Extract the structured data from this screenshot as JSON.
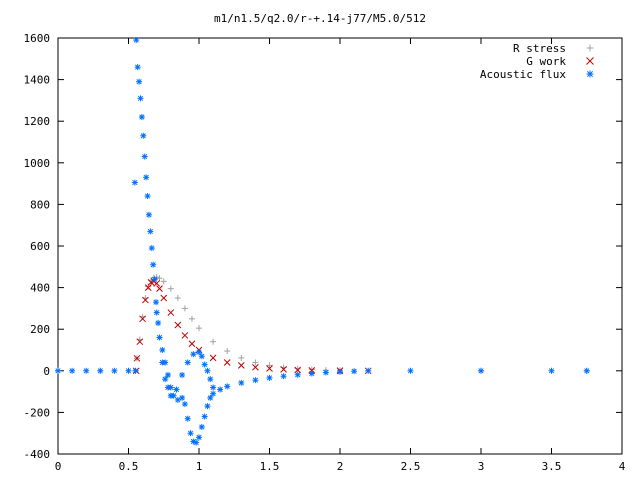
{
  "chart_data": {
    "type": "scatter",
    "title": "m1/n1.5/q2.0/r-+.14-j77/M5.0/512",
    "xlabel": "",
    "ylabel": "",
    "xlim": [
      0,
      4
    ],
    "ylim": [
      -400,
      1600
    ],
    "x_ticks": [
      {
        "value": 0,
        "label": "0"
      },
      {
        "value": 0.5,
        "label": "0.5"
      },
      {
        "value": 1,
        "label": "1"
      },
      {
        "value": 1.5,
        "label": "1.5"
      },
      {
        "value": 2,
        "label": "2"
      },
      {
        "value": 2.5,
        "label": "2.5"
      },
      {
        "value": 3,
        "label": "3"
      },
      {
        "value": 3.5,
        "label": "3.5"
      },
      {
        "value": 4,
        "label": "4"
      }
    ],
    "y_ticks": [
      {
        "value": -400,
        "label": "-400"
      },
      {
        "value": -200,
        "label": "-200"
      },
      {
        "value": 0,
        "label": "0"
      },
      {
        "value": 200,
        "label": "200"
      },
      {
        "value": 400,
        "label": "400"
      },
      {
        "value": 600,
        "label": "600"
      },
      {
        "value": 800,
        "label": "800"
      },
      {
        "value": 1000,
        "label": "1000"
      },
      {
        "value": 1200,
        "label": "1200"
      },
      {
        "value": 1400,
        "label": "1400"
      },
      {
        "value": 1600,
        "label": "1600"
      }
    ],
    "grid": false,
    "legend": "top-right",
    "series": [
      {
        "name": "R stress",
        "marker": "plus",
        "color": "#a0a0a0",
        "points": [
          [
            0,
            0
          ],
          [
            0.3,
            0
          ],
          [
            0.55,
            0
          ],
          [
            0.56,
            60
          ],
          [
            0.58,
            150
          ],
          [
            0.6,
            260
          ],
          [
            0.62,
            350
          ],
          [
            0.64,
            405
          ],
          [
            0.66,
            435
          ],
          [
            0.68,
            448
          ],
          [
            0.7,
            450
          ],
          [
            0.72,
            445
          ],
          [
            0.75,
            430
          ],
          [
            0.8,
            395
          ],
          [
            0.85,
            350
          ],
          [
            0.9,
            300
          ],
          [
            0.95,
            250
          ],
          [
            1.0,
            205
          ],
          [
            1.1,
            140
          ],
          [
            1.2,
            95
          ],
          [
            1.3,
            62
          ],
          [
            1.4,
            40
          ],
          [
            1.5,
            26
          ],
          [
            1.6,
            16
          ],
          [
            1.7,
            10
          ],
          [
            1.8,
            6
          ],
          [
            1.9,
            3
          ],
          [
            2.0,
            2
          ],
          [
            2.2,
            0
          ],
          [
            3.0,
            0
          ],
          [
            3.75,
            0
          ]
        ]
      },
      {
        "name": "G work",
        "marker": "cross",
        "color": "#c00000",
        "points": [
          [
            0.555,
            0
          ],
          [
            0.56,
            60
          ],
          [
            0.58,
            140
          ],
          [
            0.6,
            250
          ],
          [
            0.62,
            340
          ],
          [
            0.64,
            400
          ],
          [
            0.66,
            425
          ],
          [
            0.68,
            430
          ],
          [
            0.7,
            420
          ],
          [
            0.72,
            395
          ],
          [
            0.75,
            350
          ],
          [
            0.8,
            280
          ],
          [
            0.85,
            220
          ],
          [
            0.9,
            170
          ],
          [
            0.95,
            130
          ],
          [
            1.0,
            100
          ],
          [
            1.1,
            62
          ],
          [
            1.2,
            40
          ],
          [
            1.3,
            26
          ],
          [
            1.4,
            17
          ],
          [
            1.5,
            11
          ],
          [
            1.6,
            7
          ],
          [
            1.7,
            4
          ],
          [
            1.8,
            2
          ],
          [
            2.0,
            1
          ],
          [
            2.2,
            0
          ]
        ]
      },
      {
        "name": "Acoustic flux",
        "marker": "star",
        "color": "#0070ff",
        "points": [
          [
            0,
            0
          ],
          [
            0.1,
            0
          ],
          [
            0.2,
            0
          ],
          [
            0.3,
            0
          ],
          [
            0.4,
            0
          ],
          [
            0.5,
            0
          ],
          [
            0.55,
            0
          ],
          [
            0.545,
            905
          ],
          [
            0.555,
            1590
          ],
          [
            0.565,
            1460
          ],
          [
            0.575,
            1390
          ],
          [
            0.585,
            1310
          ],
          [
            0.595,
            1220
          ],
          [
            0.605,
            1130
          ],
          [
            0.615,
            1030
          ],
          [
            0.625,
            930
          ],
          [
            0.635,
            840
          ],
          [
            0.645,
            750
          ],
          [
            0.655,
            670
          ],
          [
            0.665,
            590
          ],
          [
            0.675,
            510
          ],
          [
            0.685,
            440
          ],
          [
            0.695,
            330
          ],
          [
            0.7,
            280
          ],
          [
            0.71,
            230
          ],
          [
            0.72,
            160
          ],
          [
            0.74,
            100
          ],
          [
            0.76,
            40
          ],
          [
            0.78,
            -20
          ],
          [
            0.8,
            -80
          ],
          [
            0.82,
            -120
          ],
          [
            0.85,
            -140
          ],
          [
            0.88,
            -130
          ],
          [
            0.9,
            -160
          ],
          [
            0.92,
            -230
          ],
          [
            0.94,
            -300
          ],
          [
            0.96,
            -340
          ],
          [
            0.98,
            -345
          ],
          [
            1.0,
            -320
          ],
          [
            1.02,
            -270
          ],
          [
            1.04,
            -220
          ],
          [
            1.06,
            -170
          ],
          [
            1.08,
            -130
          ],
          [
            1.1,
            -110
          ],
          [
            1.15,
            -90
          ],
          [
            1.2,
            -75
          ],
          [
            1.3,
            -58
          ],
          [
            1.4,
            -45
          ],
          [
            1.5,
            -34
          ],
          [
            1.6,
            -26
          ],
          [
            1.7,
            -19
          ],
          [
            1.8,
            -13
          ],
          [
            1.9,
            -8
          ],
          [
            2.0,
            -5
          ],
          [
            2.1,
            -2
          ],
          [
            2.2,
            0
          ],
          [
            2.5,
            0
          ],
          [
            3.0,
            0
          ],
          [
            3.5,
            0
          ],
          [
            3.75,
            0
          ],
          [
            0.74,
            40
          ],
          [
            0.76,
            -40
          ],
          [
            0.78,
            -80
          ],
          [
            0.8,
            -120
          ],
          [
            0.84,
            -90
          ],
          [
            0.88,
            -20
          ],
          [
            0.92,
            40
          ],
          [
            0.96,
            80
          ],
          [
            1.0,
            90
          ],
          [
            1.02,
            70
          ],
          [
            1.04,
            30
          ],
          [
            1.06,
            0
          ],
          [
            1.08,
            -40
          ],
          [
            1.1,
            -80
          ]
        ]
      }
    ]
  }
}
